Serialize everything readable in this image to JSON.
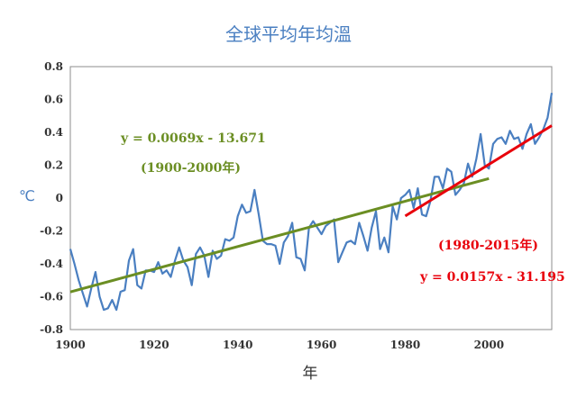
{
  "chart_data": {
    "type": "line",
    "title": "全球平均年均溫",
    "xlabel": "年",
    "ylabel": "℃",
    "xlim": [
      1900,
      2015
    ],
    "ylim": [
      -0.8,
      0.8
    ],
    "x_ticks": [
      1900,
      1920,
      1940,
      1960,
      1980,
      2000
    ],
    "y_ticks": [
      -0.8,
      -0.6,
      -0.4,
      -0.2,
      0,
      0.2,
      0.4,
      0.6,
      0.8
    ],
    "y_tick_labels": [
      "-0.8",
      "-0.6",
      "-0.4",
      "-0.2",
      "0",
      "0.2",
      "0.4",
      "0.6",
      "0.8"
    ],
    "grid": false,
    "series": [
      {
        "type": "line",
        "color": "#4a7fc1",
        "x": [
          1900,
          1901,
          1902,
          1903,
          1904,
          1905,
          1906,
          1907,
          1908,
          1909,
          1910,
          1911,
          1912,
          1913,
          1914,
          1915,
          1916,
          1917,
          1918,
          1919,
          1920,
          1921,
          1922,
          1923,
          1924,
          1925,
          1926,
          1927,
          1928,
          1929,
          1930,
          1931,
          1932,
          1933,
          1934,
          1935,
          1936,
          1937,
          1938,
          1939,
          1940,
          1941,
          1942,
          1943,
          1944,
          1945,
          1946,
          1947,
          1948,
          1949,
          1950,
          1951,
          1952,
          1953,
          1954,
          1955,
          1956,
          1957,
          1958,
          1959,
          1960,
          1961,
          1962,
          1963,
          1964,
          1965,
          1966,
          1967,
          1968,
          1969,
          1970,
          1971,
          1972,
          1973,
          1974,
          1975,
          1976,
          1977,
          1978,
          1979,
          1980,
          1981,
          1982,
          1983,
          1984,
          1985,
          1986,
          1987,
          1988,
          1989,
          1990,
          1991,
          1992,
          1993,
          1994,
          1995,
          1996,
          1997,
          1998,
          1999,
          2000,
          2001,
          2002,
          2003,
          2004,
          2005,
          2006,
          2007,
          2008,
          2009,
          2010,
          2011,
          2012,
          2013,
          2014,
          2015
        ],
        "y": [
          -0.31,
          -0.4,
          -0.5,
          -0.58,
          -0.66,
          -0.55,
          -0.45,
          -0.6,
          -0.68,
          -0.67,
          -0.62,
          -0.68,
          -0.57,
          -0.56,
          -0.38,
          -0.31,
          -0.53,
          -0.55,
          -0.44,
          -0.44,
          -0.45,
          -0.39,
          -0.46,
          -0.44,
          -0.48,
          -0.38,
          -0.3,
          -0.38,
          -0.42,
          -0.53,
          -0.34,
          -0.3,
          -0.35,
          -0.48,
          -0.32,
          -0.37,
          -0.35,
          -0.25,
          -0.26,
          -0.24,
          -0.11,
          -0.04,
          -0.09,
          -0.08,
          0.05,
          -0.1,
          -0.26,
          -0.28,
          -0.28,
          -0.29,
          -0.4,
          -0.27,
          -0.23,
          -0.15,
          -0.36,
          -0.37,
          -0.44,
          -0.18,
          -0.14,
          -0.18,
          -0.22,
          -0.17,
          -0.15,
          -0.13,
          -0.39,
          -0.33,
          -0.27,
          -0.26,
          -0.28,
          -0.15,
          -0.23,
          -0.32,
          -0.18,
          -0.08,
          -0.31,
          -0.24,
          -0.33,
          -0.05,
          -0.13,
          0.0,
          0.02,
          0.05,
          -0.06,
          0.06,
          -0.1,
          -0.11,
          -0.02,
          0.13,
          0.13,
          0.06,
          0.18,
          0.16,
          0.02,
          0.05,
          0.09,
          0.21,
          0.13,
          0.24,
          0.39,
          0.2,
          0.18,
          0.33,
          0.36,
          0.37,
          0.33,
          0.41,
          0.36,
          0.37,
          0.3,
          0.39,
          0.45,
          0.33,
          0.37,
          0.42,
          0.49,
          0.64
        ]
      },
      {
        "type": "trendline",
        "color": "#6b8e23",
        "x": [
          1900,
          2000
        ],
        "y": [
          -0.571,
          0.119
        ]
      },
      {
        "type": "trendline",
        "color": "#e8000b",
        "x": [
          1980,
          2015
        ],
        "y": [
          -0.109,
          0.441
        ]
      }
    ],
    "annotations": [
      {
        "key": "green_eq",
        "text": "y = 0.0069x - 13.671",
        "color": "#6b8e23"
      },
      {
        "key": "green_range",
        "text": "(1900-2000年)",
        "color": "#6b8e23"
      },
      {
        "key": "red_range",
        "text": "(1980-2015年)",
        "color": "#e8000b"
      },
      {
        "key": "red_eq",
        "text": "y = 0.0157x - 31.195",
        "color": "#e8000b"
      }
    ]
  }
}
